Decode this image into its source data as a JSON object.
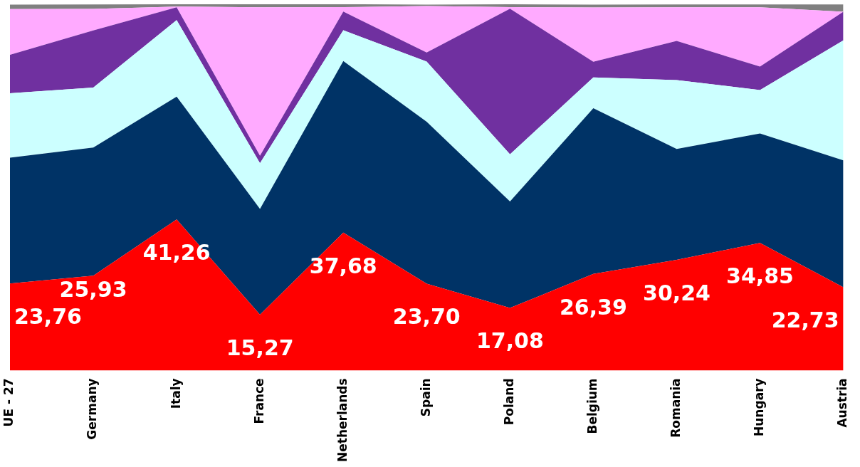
{
  "chart_data": {
    "type": "area",
    "stacked": true,
    "categories": [
      "UE - 27",
      "Germany",
      "Italy",
      "France",
      "Netherlands",
      "Spain",
      "Poland",
      "Belgium",
      "Romania",
      "Hungary",
      "Austria"
    ],
    "tick_labels": "x",
    "series": [
      {
        "color": "#ff0000",
        "values": [
          23.76,
          25.93,
          41.26,
          15.27,
          37.68,
          23.7,
          17.08,
          26.39,
          30.24,
          34.85,
          22.73
        ],
        "value_labels": [
          "23,76",
          "25,93",
          "41,26",
          "15,27",
          "37,68",
          "23,70",
          "17,08",
          "26,39",
          "30,24",
          "34,85",
          "22,73"
        ]
      },
      {
        "color": "#003366",
        "values": [
          34.4,
          35.0,
          33.6,
          28.9,
          46.9,
          44.3,
          29.1,
          45.3,
          30.3,
          29.9,
          34.7
        ]
      },
      {
        "color": "#ccffff",
        "values": [
          17.6,
          16.4,
          20.9,
          12.5,
          8.4,
          16.4,
          12.9,
          8.4,
          18.8,
          11.9,
          32.8
        ]
      },
      {
        "color": "#7030a0",
        "values": [
          10.5,
          15.6,
          3.5,
          2.0,
          5.1,
          2.5,
          39.8,
          4.3,
          10.7,
          6.4,
          7.8
        ]
      },
      {
        "color": "#ffaaff",
        "values": [
          12.5,
          5.9,
          0.2,
          40.6,
          1.2,
          12.7,
          0.4,
          14.8,
          9.2,
          16.2,
          0
        ]
      },
      {
        "color": "#808080",
        "values": [
          1.2,
          1.2,
          0.6,
          0.8,
          0.8,
          0.4,
          0.8,
          0.8,
          0.8,
          0.8,
          2.0
        ]
      }
    ]
  }
}
